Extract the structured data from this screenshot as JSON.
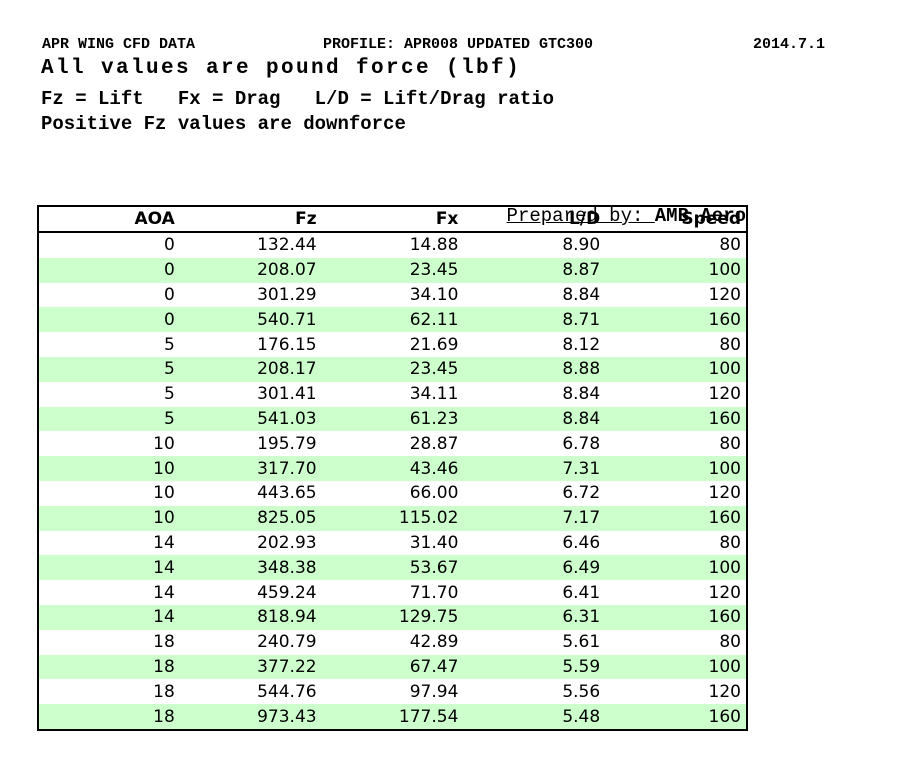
{
  "header": {
    "title": "APR WING CFD DATA",
    "profile": "PROFILE: APR008 UPDATED GTC300",
    "date": "2014.7.1",
    "subtitle": "All values are pound force (lbf)",
    "legend": "Fz = Lift   Fx = Drag   L/D = Lift/Drag ratio",
    "note": "Positive Fz values are downforce"
  },
  "prepared_by": {
    "label": "Prepared by: ",
    "value": "AMB Aero"
  },
  "table": {
    "columns": [
      "AOA",
      "Fz",
      "Fx",
      "L/D",
      "Speed"
    ],
    "rows": [
      [
        "0",
        "132.44",
        "14.88",
        "8.90",
        "80"
      ],
      [
        "0",
        "208.07",
        "23.45",
        "8.87",
        "100"
      ],
      [
        "0",
        "301.29",
        "34.10",
        "8.84",
        "120"
      ],
      [
        "0",
        "540.71",
        "62.11",
        "8.71",
        "160"
      ],
      [
        "5",
        "176.15",
        "21.69",
        "8.12",
        "80"
      ],
      [
        "5",
        "208.17",
        "23.45",
        "8.88",
        "100"
      ],
      [
        "5",
        "301.41",
        "34.11",
        "8.84",
        "120"
      ],
      [
        "5",
        "541.03",
        "61.23",
        "8.84",
        "160"
      ],
      [
        "10",
        "195.79",
        "28.87",
        "6.78",
        "80"
      ],
      [
        "10",
        "317.70",
        "43.46",
        "7.31",
        "100"
      ],
      [
        "10",
        "443.65",
        "66.00",
        "6.72",
        "120"
      ],
      [
        "10",
        "825.05",
        "115.02",
        "7.17",
        "160"
      ],
      [
        "14",
        "202.93",
        "31.40",
        "6.46",
        "80"
      ],
      [
        "14",
        "348.38",
        "53.67",
        "6.49",
        "100"
      ],
      [
        "14",
        "459.24",
        "71.70",
        "6.41",
        "120"
      ],
      [
        "14",
        "818.94",
        "129.75",
        "6.31",
        "160"
      ],
      [
        "18",
        "240.79",
        "42.89",
        "5.61",
        "80"
      ],
      [
        "18",
        "377.22",
        "67.47",
        "5.59",
        "100"
      ],
      [
        "18",
        "544.76",
        "97.94",
        "5.56",
        "120"
      ],
      [
        "18",
        "973.43",
        "177.54",
        "5.48",
        "160"
      ]
    ]
  },
  "colors": {
    "row_stripe": "#ccffcc",
    "table_border": "#000000",
    "text": "#000000",
    "background": "#ffffff"
  }
}
